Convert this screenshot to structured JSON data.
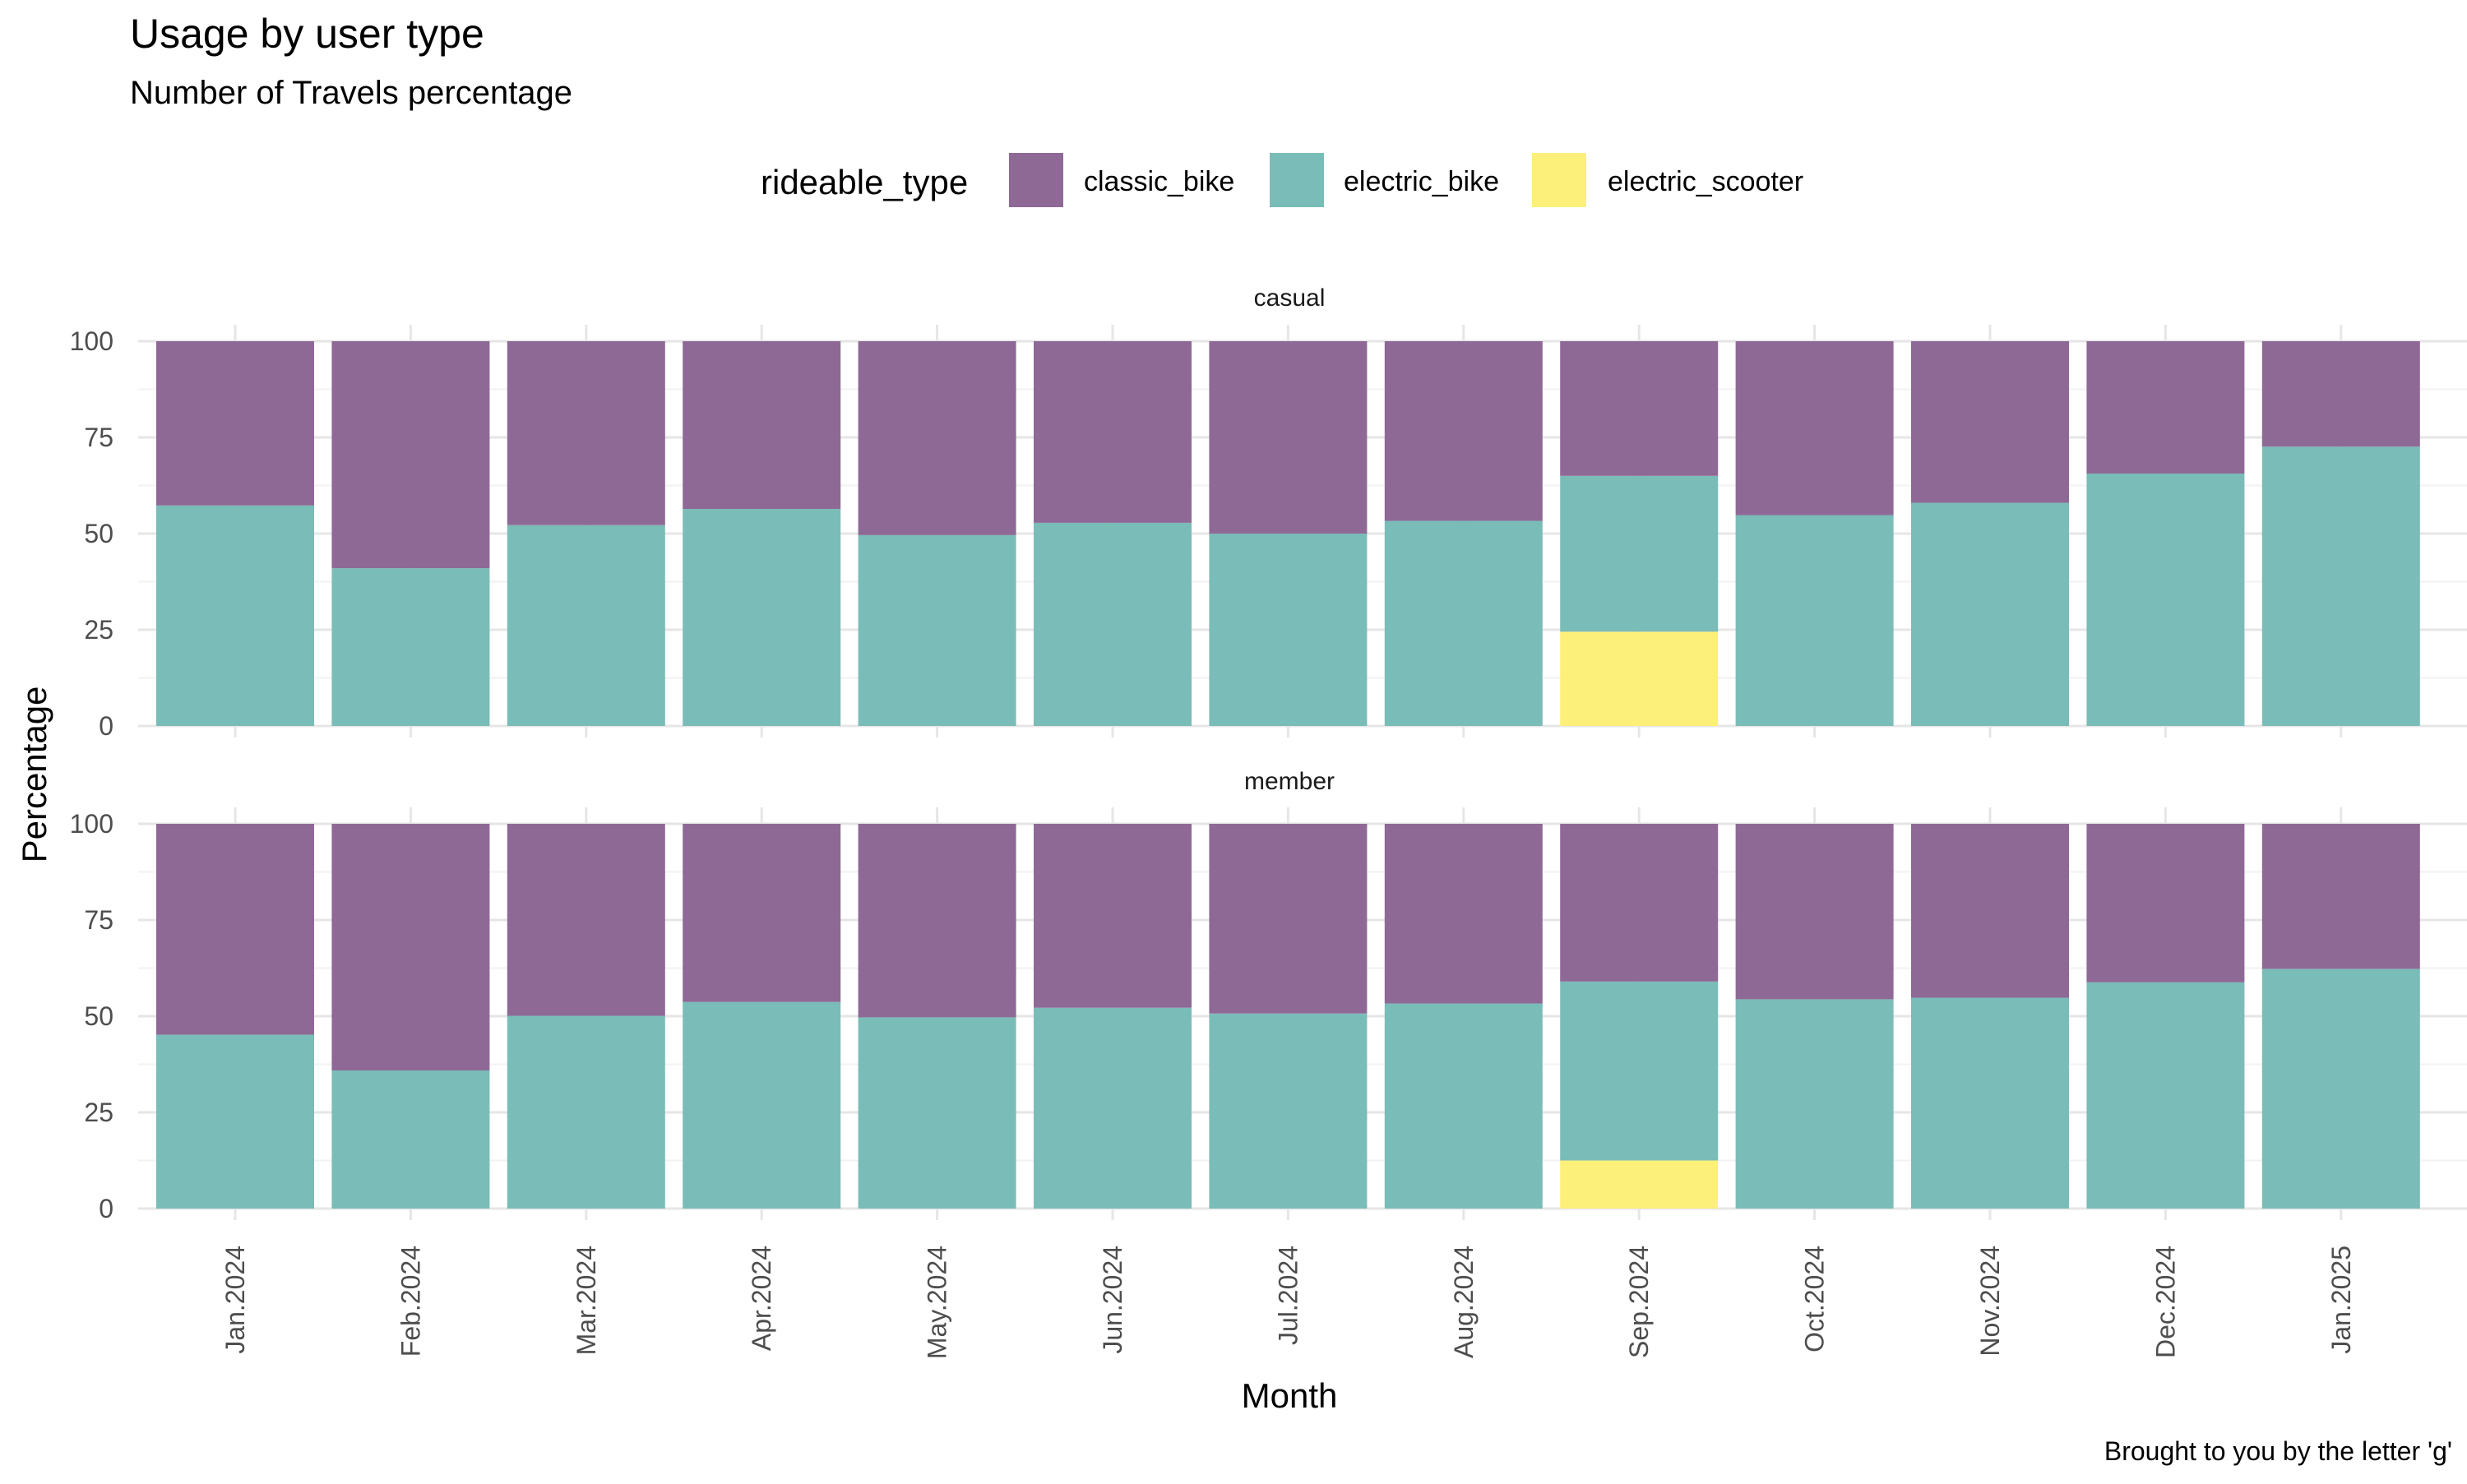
{
  "chart_data": {
    "type": "bar",
    "stacked": true,
    "title": "Usage by user type",
    "subtitle": "Number of Travels percentage",
    "caption": "Brought to you by the letter 'g'",
    "xlabel": "Month",
    "ylabel": "Percentage",
    "ylim": [
      0,
      100
    ],
    "yticks": [
      0,
      25,
      50,
      75,
      100
    ],
    "grid": true,
    "legend": {
      "title": "rideable_type",
      "position": "top",
      "entries": [
        "classic_bike",
        "electric_bike",
        "electric_scooter"
      ]
    },
    "colors": {
      "classic_bike": "#8f6996",
      "electric_bike": "#7abcb8",
      "electric_scooter": "#fdf07a"
    },
    "categories": [
      "Jan.2024",
      "Feb.2024",
      "Mar.2024",
      "Apr.2024",
      "May.2024",
      "Jun.2024",
      "Jul.2024",
      "Aug.2024",
      "Sep.2024",
      "Oct.2024",
      "Nov.2024",
      "Dec.2024",
      "Jan.2025"
    ],
    "facets": [
      {
        "label": "casual",
        "series": [
          {
            "name": "electric_scooter",
            "values": [
              0,
              0,
              0,
              0,
              0,
              0,
              0,
              0,
              24.5,
              0,
              0,
              0,
              0
            ]
          },
          {
            "name": "electric_bike",
            "values": [
              57.3,
              41.0,
              52.2,
              56.4,
              49.6,
              52.8,
              50.0,
              53.3,
              40.5,
              54.8,
              58.0,
              65.6,
              72.6
            ]
          },
          {
            "name": "classic_bike",
            "values": [
              42.7,
              59.0,
              47.8,
              43.6,
              50.4,
              47.2,
              50.0,
              46.7,
              35.0,
              45.2,
              42.0,
              34.4,
              27.4
            ]
          }
        ]
      },
      {
        "label": "member",
        "series": [
          {
            "name": "electric_scooter",
            "values": [
              0,
              0,
              0,
              0,
              0,
              0,
              0,
              0,
              12.5,
              0,
              0,
              0,
              0
            ]
          },
          {
            "name": "electric_bike",
            "values": [
              45.2,
              35.9,
              50.1,
              53.7,
              49.7,
              52.2,
              50.7,
              53.3,
              46.5,
              54.4,
              54.8,
              58.8,
              62.3
            ]
          },
          {
            "name": "classic_bike",
            "values": [
              54.8,
              64.1,
              49.9,
              46.3,
              50.3,
              47.8,
              49.3,
              46.7,
              41.0,
              45.6,
              45.2,
              41.2,
              37.7
            ]
          }
        ]
      }
    ]
  }
}
